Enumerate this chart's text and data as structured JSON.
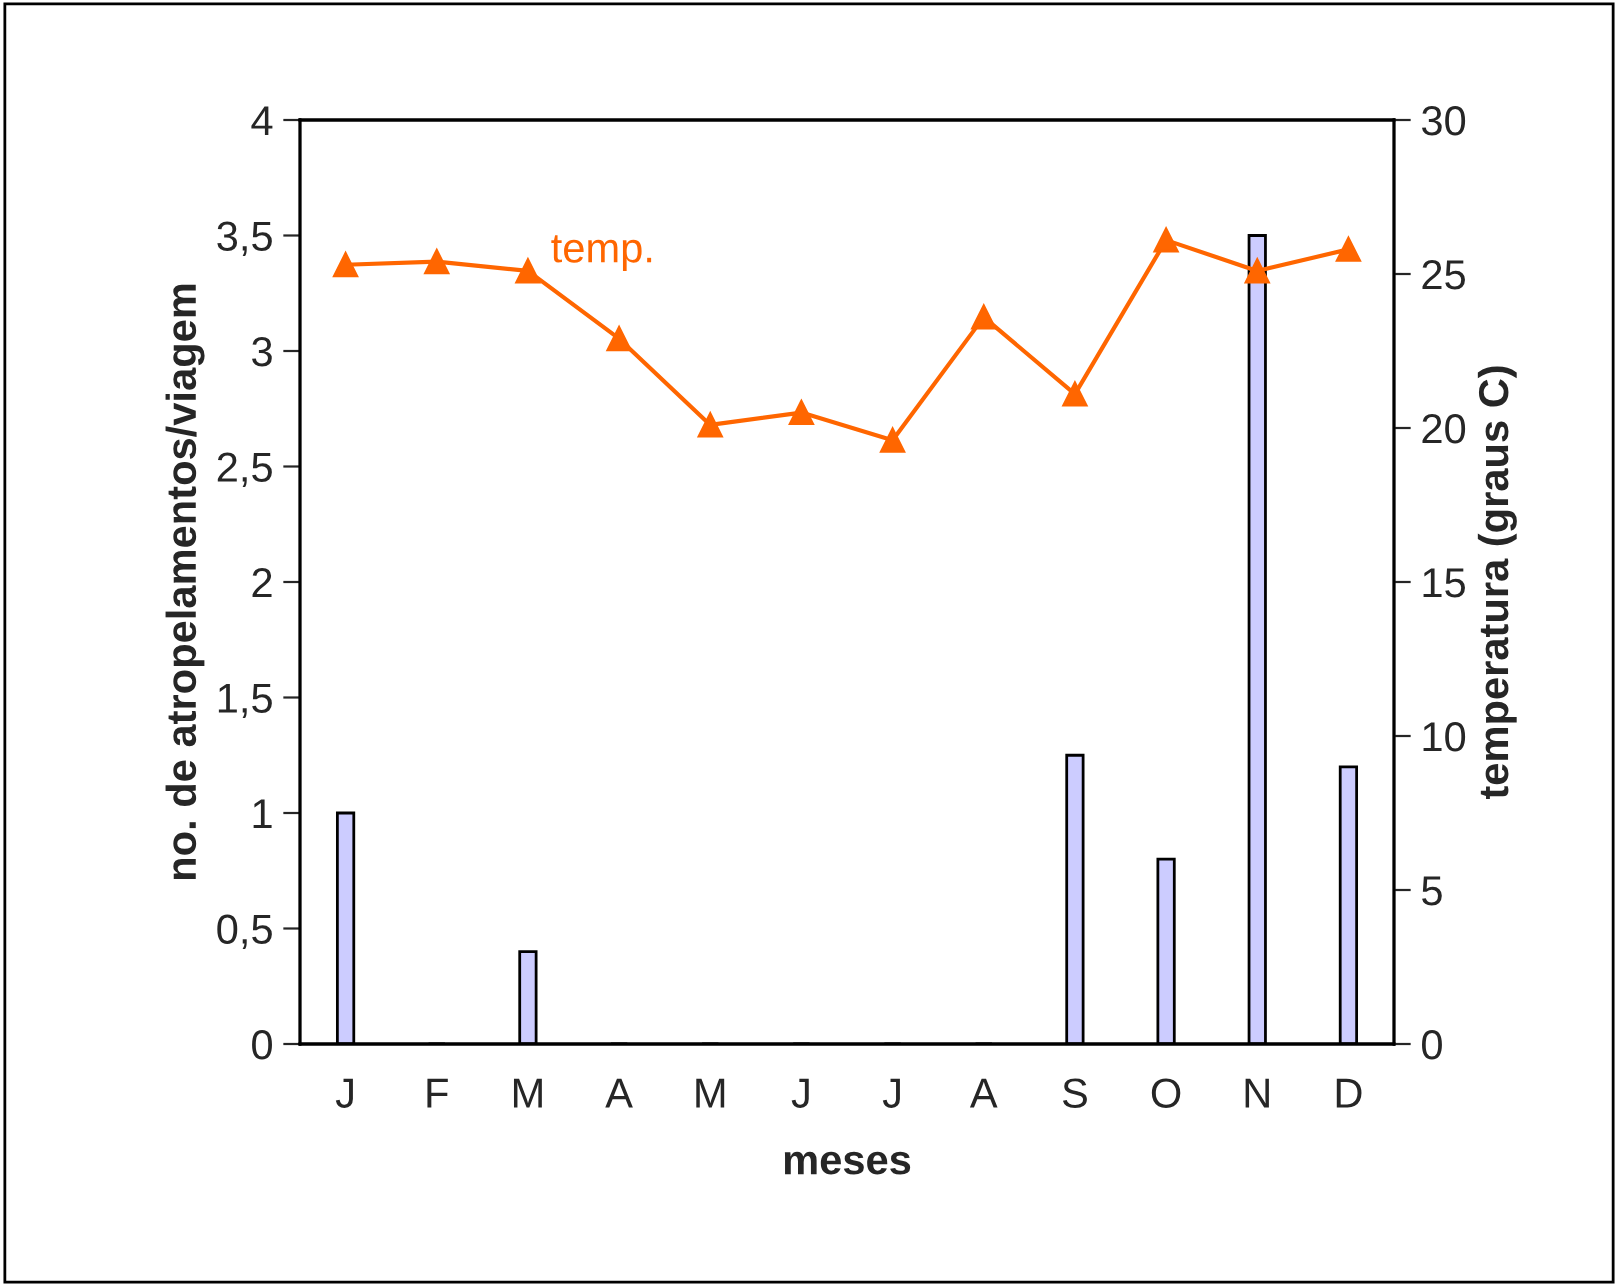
{
  "chart_data": {
    "type": "bar",
    "xlabel": "meses",
    "ylabel": "no. de atropelamentos/viagem",
    "y2label": "temperatura (graus C)",
    "categories": [
      "J",
      "F",
      "M",
      "A",
      "M",
      "J",
      "J",
      "A",
      "S",
      "O",
      "N",
      "D"
    ],
    "series": [
      {
        "color": "#ccccff",
        "values": [
          1.0,
          0,
          0.4,
          0,
          0,
          0,
          0,
          0,
          1.25,
          0.8,
          3.5,
          1.2
        ]
      },
      {
        "type": "line",
        "name": "temp.",
        "axis": "y2",
        "color": "#ff6600",
        "marker": "triangle",
        "values": [
          25.3,
          25.4,
          25.1,
          22.9,
          20.1,
          20.5,
          19.6,
          23.6,
          21.1,
          26.1,
          25.1,
          25.8
        ]
      }
    ],
    "ylim": [
      0,
      4
    ],
    "yticks": [
      0,
      {
        "value": 0.5,
        "label": "0,5"
      },
      1,
      {
        "value": 1.5,
        "label": "1,5"
      },
      2,
      {
        "value": 2.5,
        "label": "2,5"
      },
      3,
      {
        "value": 3.5,
        "label": "3,5"
      },
      4
    ],
    "y2lim": [
      0,
      30
    ],
    "y2ticks": [
      0,
      5,
      10,
      15,
      20,
      25,
      30
    ],
    "grid": false,
    "legend": false
  }
}
